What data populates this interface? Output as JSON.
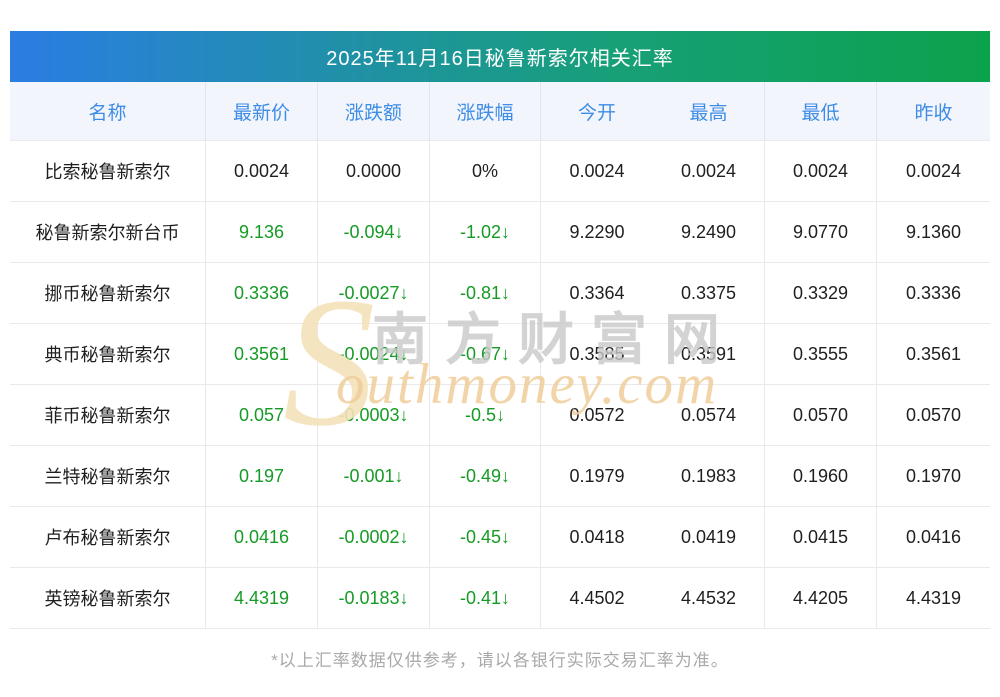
{
  "page": {
    "title_bar": "2025年11月16日秘鲁新索尔相关汇率",
    "footer": "*以上汇率数据仅供参考，请以各银行实际交易汇率为准。",
    "watermark": {
      "initial": "S",
      "cn_text": "南方财富网",
      "en_text": "outhmoney.com"
    }
  },
  "chart_data": {
    "type": "table",
    "title": "2025年11月16日秘鲁新索尔相关汇率",
    "columns": [
      "名称",
      "最新价",
      "涨跌额",
      "涨跌幅",
      "今开",
      "最高",
      "最低",
      "昨收"
    ],
    "rows": [
      {
        "name": "比索秘鲁新索尔",
        "latest": "0.0024",
        "change": "0.0000",
        "change_pct": "0%",
        "open": "0.0024",
        "high": "0.0024",
        "low": "0.0024",
        "prev_close": "0.0024",
        "trend": "flat"
      },
      {
        "name": "秘鲁新索尔新台币",
        "latest": "9.136",
        "change": "-0.094↓",
        "change_pct": "-1.02↓",
        "open": "9.2290",
        "high": "9.2490",
        "low": "9.0770",
        "prev_close": "9.1360",
        "trend": "down"
      },
      {
        "name": "挪币秘鲁新索尔",
        "latest": "0.3336",
        "change": "-0.0027↓",
        "change_pct": "-0.81↓",
        "open": "0.3364",
        "high": "0.3375",
        "low": "0.3329",
        "prev_close": "0.3336",
        "trend": "down"
      },
      {
        "name": "典币秘鲁新索尔",
        "latest": "0.3561",
        "change": "-0.0024↓",
        "change_pct": "-0.67↓",
        "open": "0.3585",
        "high": "0.3591",
        "low": "0.3555",
        "prev_close": "0.3561",
        "trend": "down"
      },
      {
        "name": "菲币秘鲁新索尔",
        "latest": "0.057",
        "change": "-0.0003↓",
        "change_pct": "-0.5↓",
        "open": "0.0572",
        "high": "0.0574",
        "low": "0.0570",
        "prev_close": "0.0570",
        "trend": "down"
      },
      {
        "name": "兰特秘鲁新索尔",
        "latest": "0.197",
        "change": "-0.001↓",
        "change_pct": "-0.49↓",
        "open": "0.1979",
        "high": "0.1983",
        "low": "0.1960",
        "prev_close": "0.1970",
        "trend": "down"
      },
      {
        "name": "卢布秘鲁新索尔",
        "latest": "0.0416",
        "change": "-0.0002↓",
        "change_pct": "-0.45↓",
        "open": "0.0418",
        "high": "0.0419",
        "low": "0.0415",
        "prev_close": "0.0416",
        "trend": "down"
      },
      {
        "name": "英镑秘鲁新索尔",
        "latest": "4.4319",
        "change": "-0.0183↓",
        "change_pct": "-0.41↓",
        "open": "4.4502",
        "high": "4.4532",
        "low": "4.4205",
        "prev_close": "4.4319",
        "trend": "down"
      }
    ],
    "layout": {
      "down_color": "#159b25",
      "flat_color": "#1f1f1f",
      "header_text_color": "#3e8ce6",
      "title_gradient": [
        "#2b7de3",
        "#0ba24c"
      ],
      "grid": "light horizontal and partial vertical separators, no divider between 今开 and 最高"
    }
  },
  "colors": {
    "gradient_left": "#2b7de3",
    "gradient_right": "#0ba24c",
    "header_text": "#3e8ce6",
    "green_down": "#159b25",
    "footer_text": "#a9a9a9"
  }
}
